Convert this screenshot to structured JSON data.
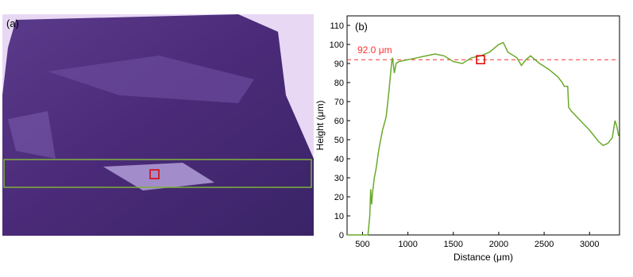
{
  "image_panel": {
    "label": "(a)"
  },
  "chart_data": {
    "type": "line",
    "title": "(b)",
    "x_label": "Distance (μm)",
    "y_label": "Height (μm)",
    "x": [
      330,
      560,
      580,
      590,
      600,
      610,
      630,
      650,
      680,
      720,
      760,
      790,
      820,
      830,
      850,
      870,
      900,
      1000,
      1100,
      1200,
      1300,
      1400,
      1500,
      1600,
      1700,
      1800,
      1900,
      2000,
      2050,
      2100,
      2200,
      2250,
      2300,
      2350,
      2450,
      2550,
      2650,
      2700,
      2720,
      2760,
      2770,
      2800,
      2900,
      3000,
      3100,
      3150,
      3200,
      3250,
      3280,
      3300,
      3320
    ],
    "series": [
      {
        "color": "#6aaa2a",
        "values": [
          0,
          0,
          10,
          24,
          16,
          22,
          30,
          35,
          45,
          55,
          62,
          75,
          90,
          93,
          85,
          90,
          91,
          92,
          93,
          94,
          95,
          94,
          91,
          90,
          93,
          94,
          96,
          100,
          101,
          96,
          93,
          89,
          92,
          94,
          90,
          87,
          83,
          80,
          78,
          78,
          67,
          65,
          60,
          55,
          49,
          47,
          48,
          51,
          60,
          57,
          52
        ]
      }
    ],
    "xlim": [
      330,
      3330
    ],
    "ylim": [
      0,
      115
    ],
    "xticks": [
      500,
      1000,
      1500,
      2000,
      2500,
      3000
    ],
    "yticks": [
      0,
      10,
      20,
      30,
      40,
      50,
      60,
      70,
      80,
      90,
      100,
      110
    ],
    "reference_line": {
      "value": 92,
      "label": "92.0 μm",
      "color": "#ff3030"
    },
    "marker": {
      "x": 1800,
      "y": 92,
      "color": "#e00000"
    }
  }
}
